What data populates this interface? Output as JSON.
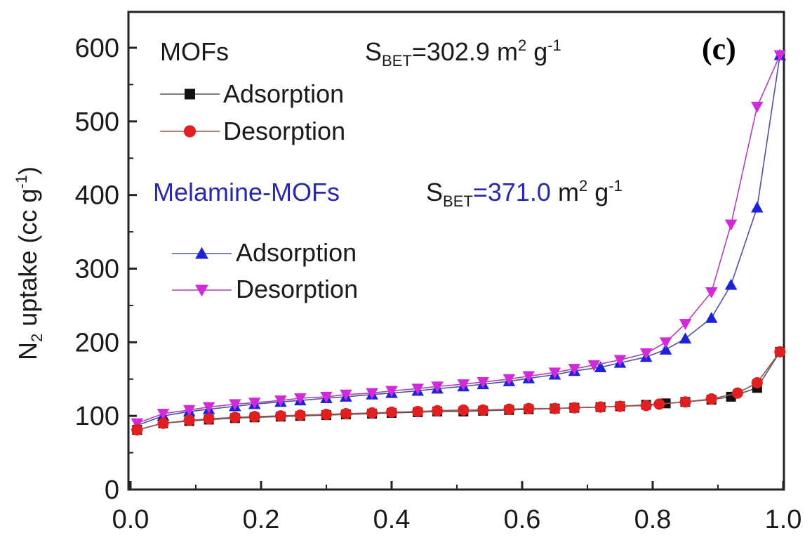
{
  "chart_data": {
    "type": "line",
    "panel_label": "(c)",
    "ylabel": {
      "prefix": "N",
      "sub": "2",
      "mid": " uptake (cc g",
      "sup": "-1",
      "suffix": ")"
    },
    "xlim": [
      0.0,
      1.0
    ],
    "ylim": [
      0,
      650
    ],
    "xticks": [
      "0.0",
      "0.2",
      "0.4",
      "0.6",
      "0.8",
      "1.0"
    ],
    "yticks": [
      "0",
      "100",
      "200",
      "300",
      "400",
      "500",
      "600"
    ],
    "groups": [
      {
        "title": "MOFs",
        "title_color": "#1a1a1a",
        "sbet": {
          "prefix": "S",
          "sub": "BET",
          "value": "=302.9",
          "value_color": "#1a1a1a",
          "unit": " m",
          "sup1": "2",
          "unit2": " g",
          "sup2": "-1"
        }
      },
      {
        "title": "Melamine-MOFs",
        "title_color": "#2a2aa8",
        "sbet": {
          "prefix": "S",
          "sub": "BET",
          "value": "=371.0",
          "value_color": "#2a2aa8",
          "unit": " m",
          "sup1": "2",
          "unit2": " g",
          "sup2": "-1"
        }
      }
    ],
    "series": [
      {
        "name": "Adsorption",
        "group": 0,
        "marker": "square",
        "color": "#111111",
        "x": [
          0.01,
          0.05,
          0.09,
          0.12,
          0.16,
          0.19,
          0.23,
          0.26,
          0.3,
          0.33,
          0.37,
          0.4,
          0.44,
          0.47,
          0.51,
          0.54,
          0.58,
          0.61,
          0.65,
          0.68,
          0.72,
          0.75,
          0.79,
          0.82,
          0.85,
          0.89,
          0.92,
          0.96,
          0.995
        ],
        "y": [
          81,
          90,
          93,
          95,
          97,
          98,
          99,
          100,
          101,
          102,
          103,
          104,
          105,
          106,
          106,
          107,
          108,
          109,
          110,
          111,
          112,
          113,
          115,
          117,
          119,
          122,
          126,
          138,
          187
        ]
      },
      {
        "name": "Desorption",
        "group": 0,
        "marker": "circle",
        "color": "#e02020",
        "x": [
          0.01,
          0.05,
          0.09,
          0.12,
          0.16,
          0.19,
          0.23,
          0.26,
          0.3,
          0.33,
          0.37,
          0.4,
          0.44,
          0.47,
          0.51,
          0.54,
          0.58,
          0.61,
          0.65,
          0.68,
          0.72,
          0.75,
          0.79,
          0.81,
          0.85,
          0.89,
          0.93,
          0.96,
          0.995
        ],
        "y": [
          81,
          90,
          94,
          96,
          98,
          99,
          100,
          101,
          102,
          103,
          104,
          105,
          106,
          107,
          108,
          108,
          109,
          110,
          110,
          111,
          112,
          113,
          114,
          116,
          119,
          123,
          131,
          145,
          187
        ]
      },
      {
        "name": "Adsorption",
        "group": 1,
        "marker": "triangle-up",
        "color": "#1f23d6",
        "x": [
          0.01,
          0.05,
          0.09,
          0.12,
          0.16,
          0.19,
          0.23,
          0.26,
          0.3,
          0.33,
          0.37,
          0.4,
          0.44,
          0.47,
          0.51,
          0.54,
          0.58,
          0.61,
          0.65,
          0.68,
          0.72,
          0.75,
          0.79,
          0.82,
          0.85,
          0.89,
          0.92,
          0.96,
          0.995
        ],
        "y": [
          87,
          100,
          106,
          109,
          113,
          116,
          119,
          121,
          124,
          126,
          129,
          131,
          134,
          137,
          140,
          143,
          147,
          151,
          156,
          161,
          166,
          172,
          180,
          190,
          205,
          233,
          278,
          383,
          590
        ]
      },
      {
        "name": "Desorption",
        "group": 1,
        "marker": "triangle-down",
        "color": "#d12ad9",
        "x": [
          0.01,
          0.05,
          0.09,
          0.12,
          0.16,
          0.19,
          0.23,
          0.26,
          0.3,
          0.33,
          0.37,
          0.4,
          0.44,
          0.47,
          0.51,
          0.54,
          0.58,
          0.61,
          0.65,
          0.68,
          0.71,
          0.75,
          0.79,
          0.82,
          0.85,
          0.89,
          0.92,
          0.96,
          0.995
        ],
        "y": [
          90,
          103,
          108,
          112,
          116,
          118,
          121,
          124,
          126,
          129,
          131,
          134,
          137,
          140,
          143,
          146,
          150,
          154,
          159,
          164,
          169,
          176,
          185,
          200,
          225,
          268,
          360,
          520,
          590
        ]
      }
    ]
  }
}
